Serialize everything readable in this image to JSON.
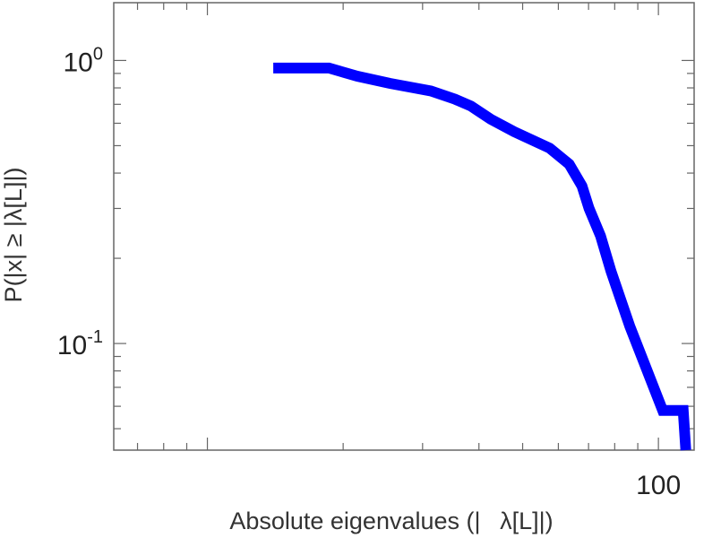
{
  "chart_data": {
    "type": "line",
    "style": "step",
    "title": "",
    "xlabel": "Absolute eigenvalues (|    λ[L]|)",
    "ylabel": "P(|x| ≥ |λ[L]|)",
    "xscale": "log",
    "yscale": "log",
    "xlim": [
      6.2,
      120
    ],
    "ylim": [
      0.042,
      1.6
    ],
    "x_tick_labels": [
      {
        "value": 100,
        "label": "100"
      }
    ],
    "y_tick_labels": [
      {
        "value": 1,
        "base": "10",
        "exp": "0"
      },
      {
        "value": 0.1,
        "base": "10",
        "exp": "-1"
      }
    ],
    "grid": false,
    "line_color": "#0000ff",
    "series": [
      {
        "x": [
          14.0,
          18.6,
          21.5,
          25.4,
          31.3,
          35.4,
          38.4,
          42.5,
          47.9,
          57.4,
          63.4,
          67.7,
          70.2,
          74.4,
          78.5,
          86.4,
          102.2,
          113.5,
          115.0
        ],
        "y": [
          0.94,
          0.94,
          0.88,
          0.83,
          0.78,
          0.73,
          0.69,
          0.62,
          0.56,
          0.49,
          0.43,
          0.36,
          0.3,
          0.24,
          0.18,
          0.115,
          0.058,
          0.058,
          0.042
        ]
      }
    ]
  }
}
